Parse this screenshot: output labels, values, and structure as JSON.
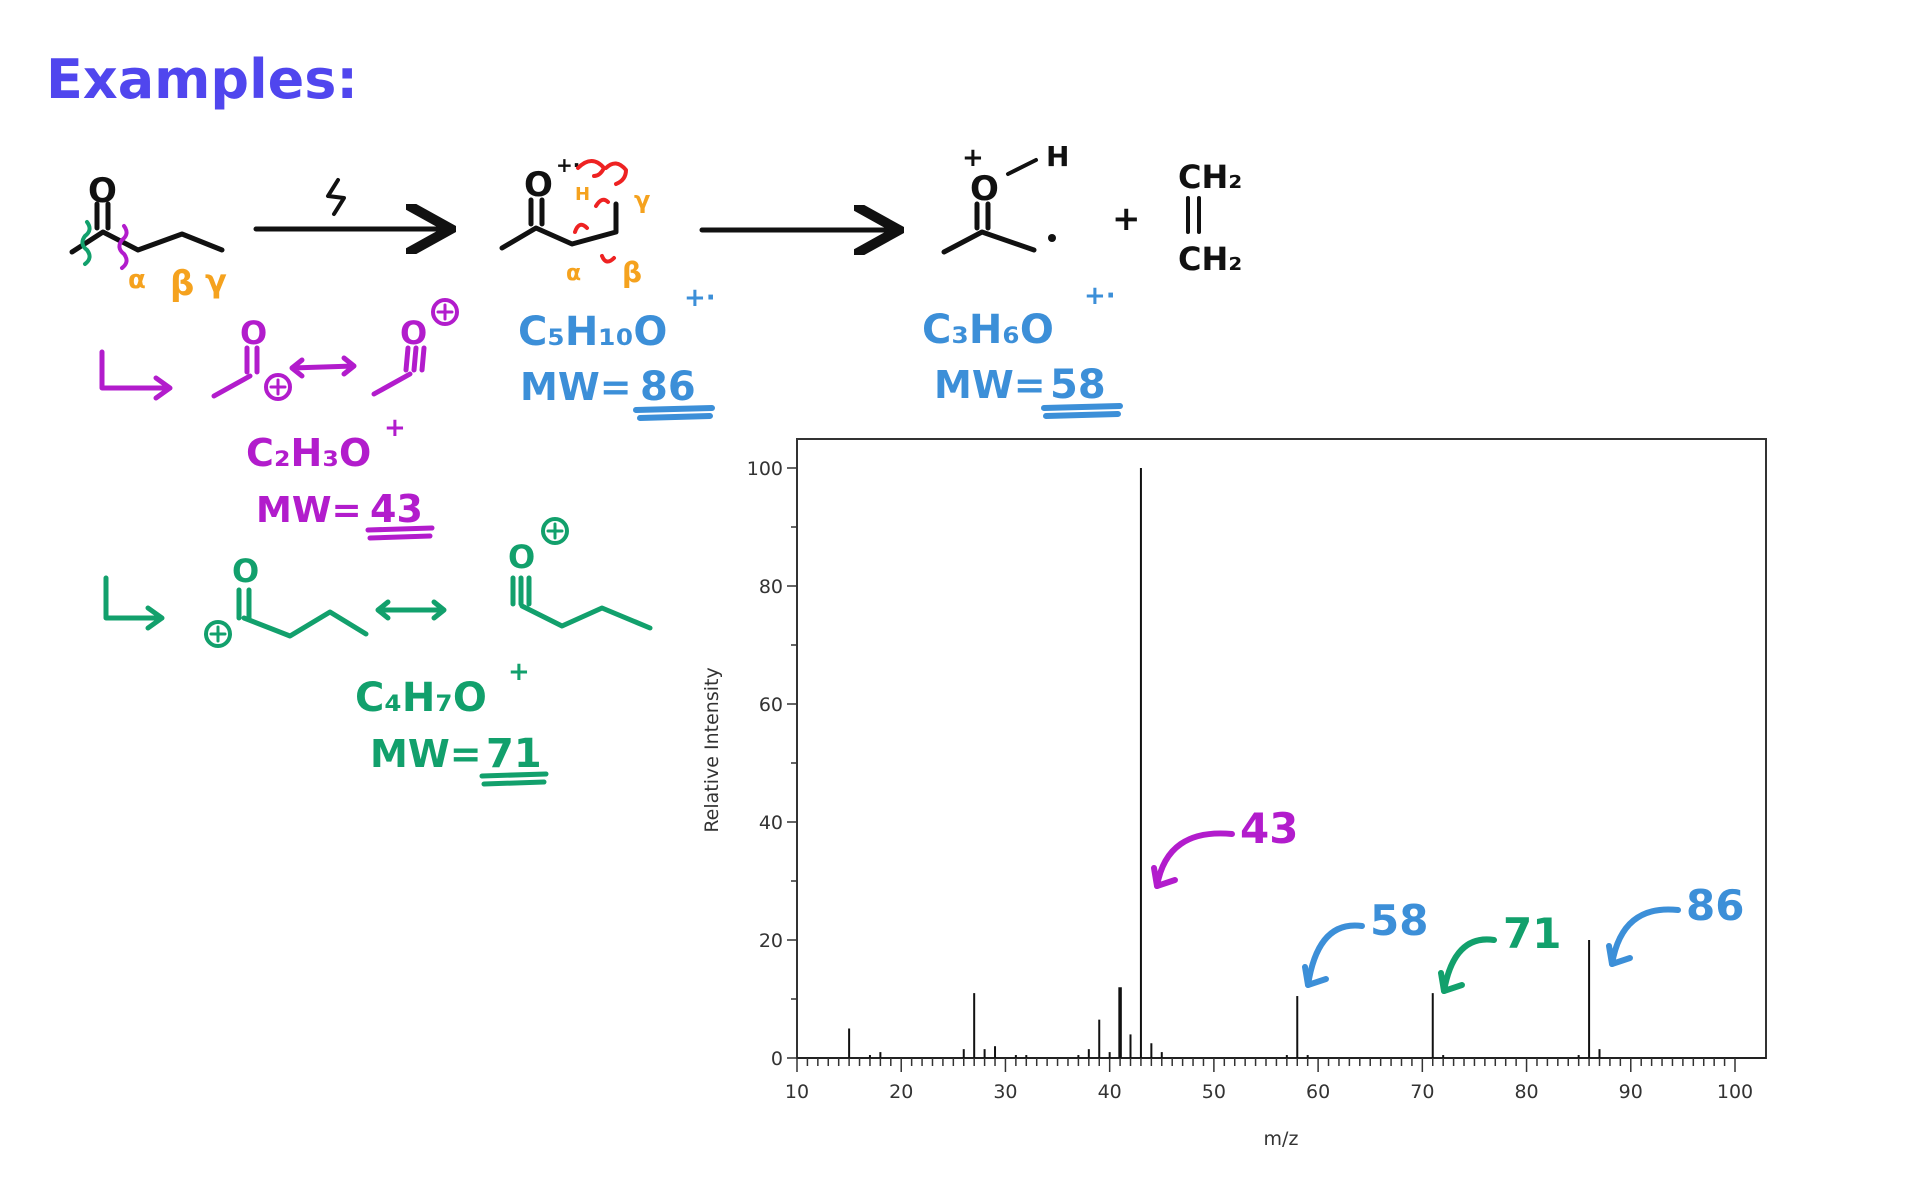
{
  "title": "Examples:",
  "colors": {
    "title": "#5046ee",
    "purple": "#b21ccc",
    "green": "#12a06c",
    "blue": "#3c8fd8",
    "orange": "#f5a21e",
    "red": "#ee2222",
    "black": "#111111"
  },
  "reaction": {
    "greek": {
      "alpha": "α",
      "beta": "β",
      "gamma": "γ"
    },
    "h_label": "H",
    "oxygen": "O",
    "plus": "+",
    "ethylene": {
      "top": "CH₂",
      "bottom": "CH₂"
    },
    "lightning_icon": "lightning-icon"
  },
  "fragments": {
    "molecular_ion": {
      "formula": "C₅H₁₀O",
      "charge": "+·",
      "mw_label": "MW=",
      "mw": "86"
    },
    "mclafferty": {
      "formula": "C₃H₆O",
      "charge": "+·",
      "mw_label": "MW=",
      "mw": "58"
    },
    "acylium_43": {
      "formula": "C₂H₃O",
      "charge": "+",
      "mw_label": "MW=",
      "mw": "43"
    },
    "acylium_71": {
      "formula": "C₄H₇O",
      "charge": "+",
      "mw_label": "MW=",
      "mw": "71"
    }
  },
  "chart_data": {
    "type": "bar",
    "xlabel": "m/z",
    "ylabel": "Relative Intensity",
    "xlim": [
      10,
      100
    ],
    "ylim": [
      0,
      100
    ],
    "xticks": [
      "10",
      "20",
      "30",
      "40",
      "50",
      "60",
      "70",
      "80",
      "90",
      "100"
    ],
    "yticks": [
      "0",
      "20",
      "40",
      "60",
      "80",
      "100"
    ],
    "grid": false,
    "x": [
      15,
      17,
      18,
      26,
      27,
      28,
      29,
      31,
      32,
      37,
      38,
      39,
      40,
      41,
      42,
      43,
      44,
      45,
      57,
      58,
      59,
      71,
      72,
      85,
      86,
      87
    ],
    "values": [
      5,
      0.5,
      1,
      1.5,
      11,
      1.5,
      2,
      0.5,
      0.5,
      0.5,
      1.5,
      6.5,
      1,
      12,
      4,
      100,
      2.5,
      1,
      0.5,
      10.5,
      0.5,
      11,
      0.5,
      0.5,
      20,
      1.5
    ],
    "annotations": [
      {
        "label": "43",
        "target_mz": 43,
        "color": "#b21ccc"
      },
      {
        "label": "58",
        "target_mz": 58,
        "color": "#3c8fd8"
      },
      {
        "label": "71",
        "target_mz": 71,
        "color": "#12a06c"
      },
      {
        "label": "86",
        "target_mz": 86,
        "color": "#3c8fd8"
      }
    ]
  }
}
